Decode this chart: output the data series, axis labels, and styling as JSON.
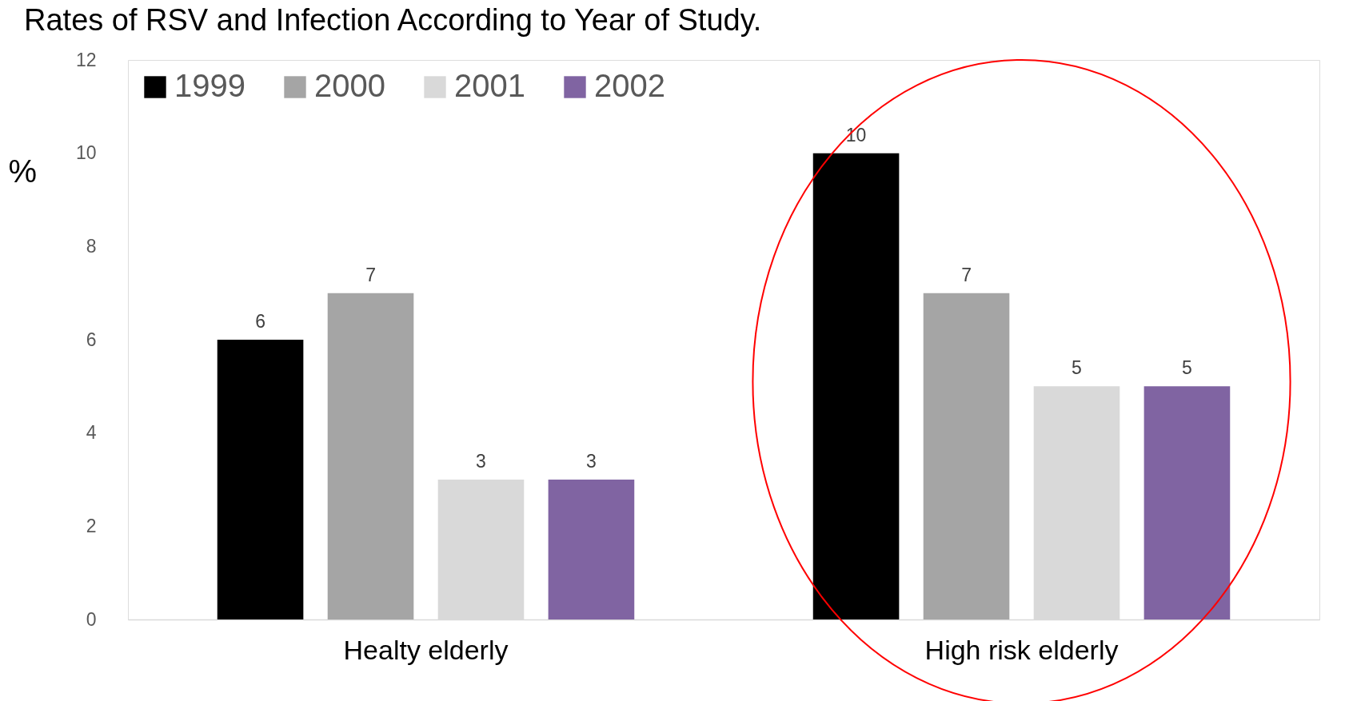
{
  "chart_data": {
    "type": "bar",
    "title": "Rates of RSV and Infection According to Year of Study.",
    "ylabel": "%",
    "categories": [
      "Healty elderly",
      "High risk elderly"
    ],
    "series": [
      {
        "name": "1999",
        "color": "#000000",
        "values": [
          6,
          10
        ]
      },
      {
        "name": "2000",
        "color": "#a5a5a5",
        "values": [
          7,
          7
        ]
      },
      {
        "name": "2001",
        "color": "#d9d9d9",
        "values": [
          3,
          5
        ]
      },
      {
        "name": "2002",
        "color": "#8064a2",
        "values": [
          3,
          5
        ]
      }
    ],
    "ylim": [
      0,
      12
    ],
    "yticks": [
      0,
      2,
      4,
      6,
      8,
      10,
      12
    ],
    "grid": false,
    "legend": "top left",
    "data_labels": true
  }
}
